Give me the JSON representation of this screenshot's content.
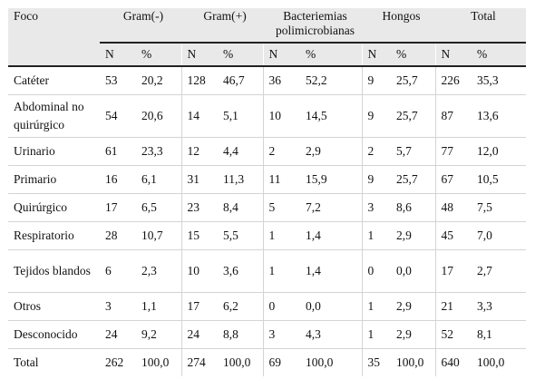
{
  "header": {
    "foco": "Foco",
    "groups": [
      "Gram(-)",
      "Gram(+)",
      "Bacteriemias polimicrobianas",
      "Hongos",
      "Total"
    ],
    "sub": [
      "N",
      "%"
    ]
  },
  "rows": [
    {
      "label": "Catéter",
      "values": [
        "53",
        "20,2",
        "128",
        "46,7",
        "36",
        "52,2",
        "9",
        "25,7",
        "226",
        "35,3"
      ]
    },
    {
      "label": "Abdominal no quirúrgico",
      "values": [
        "54",
        "20,6",
        "14",
        "5,1",
        "10",
        "14,5",
        "9",
        "25,7",
        "87",
        "13,6"
      ]
    },
    {
      "label": "Urinario",
      "values": [
        "61",
        "23,3",
        "12",
        "4,4",
        "2",
        "2,9",
        "2",
        "5,7",
        "77",
        "12,0"
      ]
    },
    {
      "label": "Primario",
      "values": [
        "16",
        "6,1",
        "31",
        "11,3",
        "11",
        "15,9",
        "9",
        "25,7",
        "67",
        "10,5"
      ]
    },
    {
      "label": "Quirúrgico",
      "values": [
        "17",
        "6,5",
        "23",
        "8,4",
        "5",
        "7,2",
        "3",
        "8,6",
        "48",
        "7,5"
      ]
    },
    {
      "label": "Respiratorio",
      "values": [
        "28",
        "10,7",
        "15",
        "5,5",
        "1",
        "1,4",
        "1",
        "2,9",
        "45",
        "7,0"
      ]
    },
    {
      "label": "Tejidos blandos",
      "values": [
        "6",
        "2,3",
        "10",
        "3,6",
        "1",
        "1,4",
        "0",
        "0,0",
        "17",
        "2,7"
      ]
    },
    {
      "label": "Otros",
      "values": [
        "3",
        "1,1",
        "17",
        "6,2",
        "0",
        "0,0",
        "1",
        "2,9",
        "21",
        "3,3"
      ]
    },
    {
      "label": "Desconocido",
      "values": [
        "24",
        "9,2",
        "24",
        "8,8",
        "3",
        "4,3",
        "1",
        "2,9",
        "52",
        "8,1"
      ]
    },
    {
      "label": "Total",
      "values": [
        "262",
        "100,0",
        "274",
        "100,0",
        "69",
        "100,0",
        "35",
        "100,0",
        "640",
        "100,0"
      ]
    }
  ]
}
